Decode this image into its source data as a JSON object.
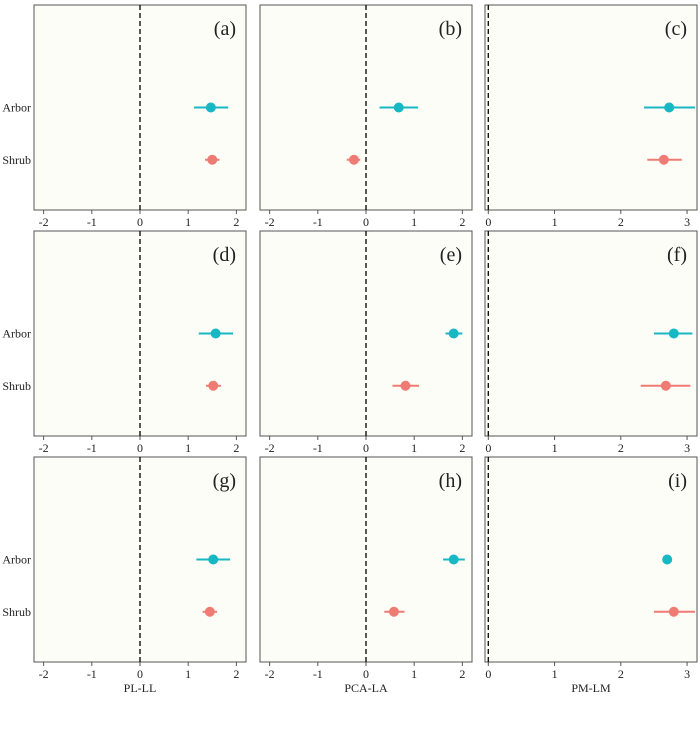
{
  "colors": {
    "panel_bg": "#fdfdf7",
    "frame": "#555555",
    "arbor": "#17b8c4",
    "shrub": "#ef7c74",
    "text": "#222222"
  },
  "chart_data": [
    {
      "type": "scatter",
      "panel_label": "(a)",
      "xlabel": "PL-LL",
      "xlim": [
        -2.2,
        2.2
      ],
      "xticks": [
        -2,
        -1,
        0,
        1,
        2
      ],
      "xtick_labels": [
        "-2",
        "-1",
        "0",
        "1",
        "2"
      ],
      "reference_line": 0,
      "categories": [
        "Arbor",
        "Shrub"
      ],
      "series": [
        {
          "name": "Arbor",
          "estimate": 1.47,
          "ci": [
            1.12,
            1.83
          ]
        },
        {
          "name": "Shrub",
          "estimate": 1.5,
          "ci": [
            1.35,
            1.65
          ]
        }
      ]
    },
    {
      "type": "scatter",
      "panel_label": "(b)",
      "xlabel": "PCA-LA",
      "xlim": [
        -2.2,
        2.2
      ],
      "xticks": [
        -2,
        -1,
        0,
        1,
        2
      ],
      "xtick_labels": [
        "-2",
        "-1",
        "0",
        "1",
        "2"
      ],
      "reference_line": 0,
      "categories": [
        "Arbor",
        "Shrub"
      ],
      "series": [
        {
          "name": "Arbor",
          "estimate": 0.68,
          "ci": [
            0.28,
            1.08
          ]
        },
        {
          "name": "Shrub",
          "estimate": -0.25,
          "ci": [
            -0.4,
            -0.12
          ]
        }
      ]
    },
    {
      "type": "scatter",
      "panel_label": "(c)",
      "xlabel": "PM-LM",
      "xlim": [
        -0.05,
        3.15
      ],
      "xticks": [
        0,
        1,
        2,
        3
      ],
      "xtick_labels": [
        "0",
        "1",
        "2",
        "3"
      ],
      "reference_line": 0,
      "categories": [
        "Arbor",
        "Shrub"
      ],
      "series": [
        {
          "name": "Arbor",
          "estimate": 2.73,
          "ci": [
            2.35,
            3.12
          ]
        },
        {
          "name": "Shrub",
          "estimate": 2.65,
          "ci": [
            2.4,
            2.92
          ]
        }
      ]
    },
    {
      "type": "scatter",
      "panel_label": "(d)",
      "xlabel": "PL-LL",
      "xlim": [
        -2.2,
        2.2
      ],
      "xticks": [
        -2,
        -1,
        0,
        1,
        2
      ],
      "xtick_labels": [
        "-2",
        "-1",
        "0",
        "1",
        "2"
      ],
      "reference_line": 0,
      "categories": [
        "Arbor",
        "Shrub"
      ],
      "series": [
        {
          "name": "Arbor",
          "estimate": 1.57,
          "ci": [
            1.22,
            1.93
          ]
        },
        {
          "name": "Shrub",
          "estimate": 1.52,
          "ci": [
            1.37,
            1.68
          ]
        }
      ]
    },
    {
      "type": "scatter",
      "panel_label": "(e)",
      "xlabel": "PCA-LA",
      "xlim": [
        -2.2,
        2.2
      ],
      "xticks": [
        -2,
        -1,
        0,
        1,
        2
      ],
      "xtick_labels": [
        "-2",
        "-1",
        "0",
        "1",
        "2"
      ],
      "reference_line": 0,
      "categories": [
        "Arbor",
        "Shrub"
      ],
      "series": [
        {
          "name": "Arbor",
          "estimate": 1.82,
          "ci": [
            1.65,
            2.0
          ]
        },
        {
          "name": "Shrub",
          "estimate": 0.82,
          "ci": [
            0.55,
            1.1
          ]
        }
      ]
    },
    {
      "type": "scatter",
      "panel_label": "(f)",
      "xlabel": "PM-LM",
      "xlim": [
        -0.05,
        3.15
      ],
      "xticks": [
        0,
        1,
        2,
        3
      ],
      "xtick_labels": [
        "0",
        "1",
        "2",
        "3"
      ],
      "reference_line": 0,
      "categories": [
        "Arbor",
        "Shrub"
      ],
      "series": [
        {
          "name": "Arbor",
          "estimate": 2.8,
          "ci": [
            2.5,
            3.08
          ]
        },
        {
          "name": "Shrub",
          "estimate": 2.68,
          "ci": [
            2.3,
            3.05
          ]
        }
      ]
    },
    {
      "type": "scatter",
      "panel_label": "(g)",
      "xlabel": "PL-LL",
      "xlim": [
        -2.2,
        2.2
      ],
      "xticks": [
        -2,
        -1,
        0,
        1,
        2
      ],
      "xtick_labels": [
        "-2",
        "-1",
        "0",
        "1",
        "2"
      ],
      "reference_line": 0,
      "categories": [
        "Arbor",
        "Shrub"
      ],
      "series": [
        {
          "name": "Arbor",
          "estimate": 1.52,
          "ci": [
            1.17,
            1.87
          ]
        },
        {
          "name": "Shrub",
          "estimate": 1.45,
          "ci": [
            1.3,
            1.6
          ]
        }
      ]
    },
    {
      "type": "scatter",
      "panel_label": "(h)",
      "xlabel": "PCA-LA",
      "xlim": [
        -2.2,
        2.2
      ],
      "xticks": [
        -2,
        -1,
        0,
        1,
        2
      ],
      "xtick_labels": [
        "-2",
        "-1",
        "0",
        "1",
        "2"
      ],
      "reference_line": 0,
      "categories": [
        "Arbor",
        "Shrub"
      ],
      "series": [
        {
          "name": "Arbor",
          "estimate": 1.82,
          "ci": [
            1.6,
            2.05
          ]
        },
        {
          "name": "Shrub",
          "estimate": 0.58,
          "ci": [
            0.38,
            0.8
          ]
        }
      ]
    },
    {
      "type": "scatter",
      "panel_label": "(i)",
      "xlabel": "PM-LM",
      "xlim": [
        -0.05,
        3.15
      ],
      "xticks": [
        0,
        1,
        2,
        3
      ],
      "xtick_labels": [
        "0",
        "1",
        "2",
        "3"
      ],
      "reference_line": 0,
      "categories": [
        "Arbor",
        "Shrub"
      ],
      "series": [
        {
          "name": "Arbor",
          "estimate": 2.7,
          "ci": [
            2.7,
            2.7
          ]
        },
        {
          "name": "Shrub",
          "estimate": 2.8,
          "ci": [
            2.5,
            3.12
          ]
        }
      ]
    }
  ]
}
